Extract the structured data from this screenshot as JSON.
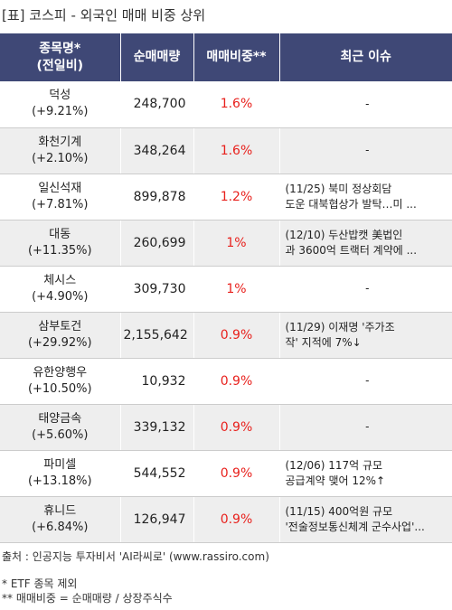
{
  "title": "[표] 코스피 - 외국인 매매 비중 상위",
  "table": {
    "headers": {
      "name": "종목명*",
      "name_sub": "(전일비)",
      "volume": "순매매량",
      "ratio": "매매비중**",
      "issue": "최근 이슈"
    },
    "rows": [
      {
        "name": "덕성",
        "change": "(+9.21%)",
        "volume": "248,700",
        "ratio": "1.6%",
        "issue": "-"
      },
      {
        "name": "화천기계",
        "change": "(+2.10%)",
        "volume": "348,264",
        "ratio": "1.6%",
        "issue": "-"
      },
      {
        "name": "일신석재",
        "change": "(+7.81%)",
        "volume": "899,878",
        "ratio": "1.2%",
        "issue": "(11/25) 북미 정상회담\n도운 대북협상가 발탁…미 ..."
      },
      {
        "name": "대동",
        "change": "(+11.35%)",
        "volume": "260,699",
        "ratio": "1%",
        "issue": "(12/10) 두산밥캣 美법인\n과 3600억 트랙터 계약에 ..."
      },
      {
        "name": "체시스",
        "change": "(+4.90%)",
        "volume": "309,730",
        "ratio": "1%",
        "issue": "-"
      },
      {
        "name": "삼부토건",
        "change": "(+29.92%)",
        "volume": "2,155,642",
        "ratio": "0.9%",
        "issue": "(11/29) 이재명 '주가조\n작' 지적에 7%↓"
      },
      {
        "name": "유한양행우",
        "change": "(+10.50%)",
        "volume": "10,932",
        "ratio": "0.9%",
        "issue": "-"
      },
      {
        "name": "태양금속",
        "change": "(+5.60%)",
        "volume": "339,132",
        "ratio": "0.9%",
        "issue": "-"
      },
      {
        "name": "파미셀",
        "change": "(+13.18%)",
        "volume": "544,552",
        "ratio": "0.9%",
        "issue": "(12/06) 117억 규모\n공급계약 맺어 12%↑"
      },
      {
        "name": "휴니드",
        "change": "(+6.84%)",
        "volume": "126,947",
        "ratio": "0.9%",
        "issue": "(11/15) 400억원 규모\n '전술정보통신체계 군수사업'..."
      }
    ]
  },
  "source": "출처 : 인공지능 투자비서 'AI라씨로' (www.rassiro.com)",
  "notes": [
    "* ETF 종목 제외",
    "** 매매비중 = 순매매량 / 상장주식수"
  ],
  "colors": {
    "header_bg": "#3f4876",
    "ratio_text": "#e8211d",
    "stripe": "#eeeeee"
  }
}
